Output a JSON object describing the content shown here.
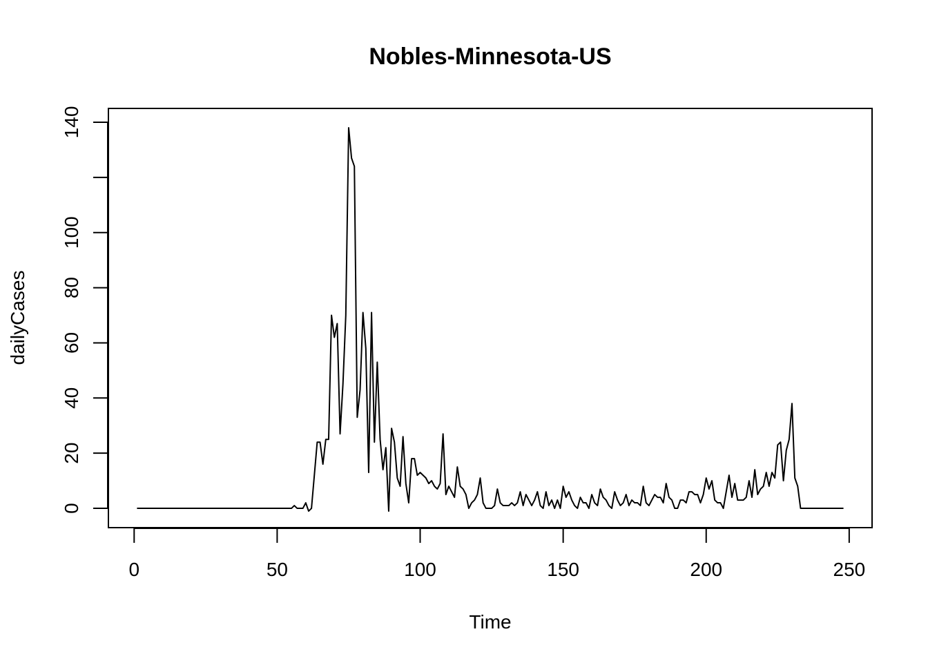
{
  "chart_data": {
    "type": "line",
    "title": "Nobles-Minnesota-US",
    "xlabel": "Time",
    "ylabel": "dailyCases",
    "xlim": [
      -9,
      258
    ],
    "ylim": [
      -7,
      145
    ],
    "x_ticks": [
      0,
      50,
      100,
      150,
      200,
      250
    ],
    "y_ticks": [
      0,
      20,
      40,
      60,
      80,
      100,
      120,
      140
    ],
    "y_tick_labels": [
      "0",
      "20",
      "40",
      "60",
      "80",
      "100",
      "",
      "140"
    ],
    "grid": false,
    "legend": "none",
    "line_color": "#000000",
    "series": [
      {
        "x_start": 1,
        "values": [
          0,
          0,
          0,
          0,
          0,
          0,
          0,
          0,
          0,
          0,
          0,
          0,
          0,
          0,
          0,
          0,
          0,
          0,
          0,
          0,
          0,
          0,
          0,
          0,
          0,
          0,
          0,
          0,
          0,
          0,
          0,
          0,
          0,
          0,
          0,
          0,
          0,
          0,
          0,
          0,
          0,
          0,
          0,
          0,
          0,
          0,
          0,
          0,
          0,
          0,
          0,
          0,
          0,
          0,
          0,
          1,
          0,
          0,
          0,
          2,
          -1,
          0,
          12,
          24,
          24,
          16,
          25,
          25,
          70,
          62,
          67,
          27,
          45,
          70,
          138,
          127,
          124,
          33,
          43,
          71,
          58,
          13,
          71,
          24,
          53,
          25,
          14,
          22,
          -1,
          29,
          24,
          11,
          8,
          26,
          9,
          2,
          18,
          18,
          12,
          13,
          12,
          11,
          9,
          10,
          8,
          7,
          9,
          27,
          5,
          8,
          6,
          4,
          15,
          8,
          7,
          5,
          0,
          2,
          3,
          5,
          11,
          2,
          0,
          0,
          0,
          1,
          7,
          2,
          1,
          1,
          1,
          2,
          1,
          2,
          6,
          1,
          5,
          3,
          1,
          3,
          6,
          1,
          0,
          6,
          1,
          3,
          0,
          3,
          0,
          8,
          4,
          6,
          3,
          1,
          0,
          4,
          2,
          2,
          0,
          5,
          2,
          1,
          7,
          4,
          3,
          1,
          0,
          6,
          3,
          1,
          2,
          5,
          1,
          3,
          2,
          2,
          1,
          8,
          2,
          1,
          3,
          5,
          4,
          4,
          2,
          9,
          4,
          3,
          0,
          0,
          3,
          3,
          2,
          6,
          6,
          5,
          5,
          2,
          5,
          11,
          7,
          10,
          3,
          2,
          2,
          0,
          6,
          12,
          4,
          9,
          3,
          3,
          3,
          4,
          10,
          4,
          14,
          5,
          7,
          8,
          13,
          8,
          13,
          11,
          23,
          24,
          10,
          21,
          25,
          38,
          11,
          8,
          0,
          0,
          0,
          0,
          0,
          0,
          0,
          0,
          0,
          0,
          0,
          0,
          0,
          0,
          0,
          0
        ]
      }
    ]
  }
}
